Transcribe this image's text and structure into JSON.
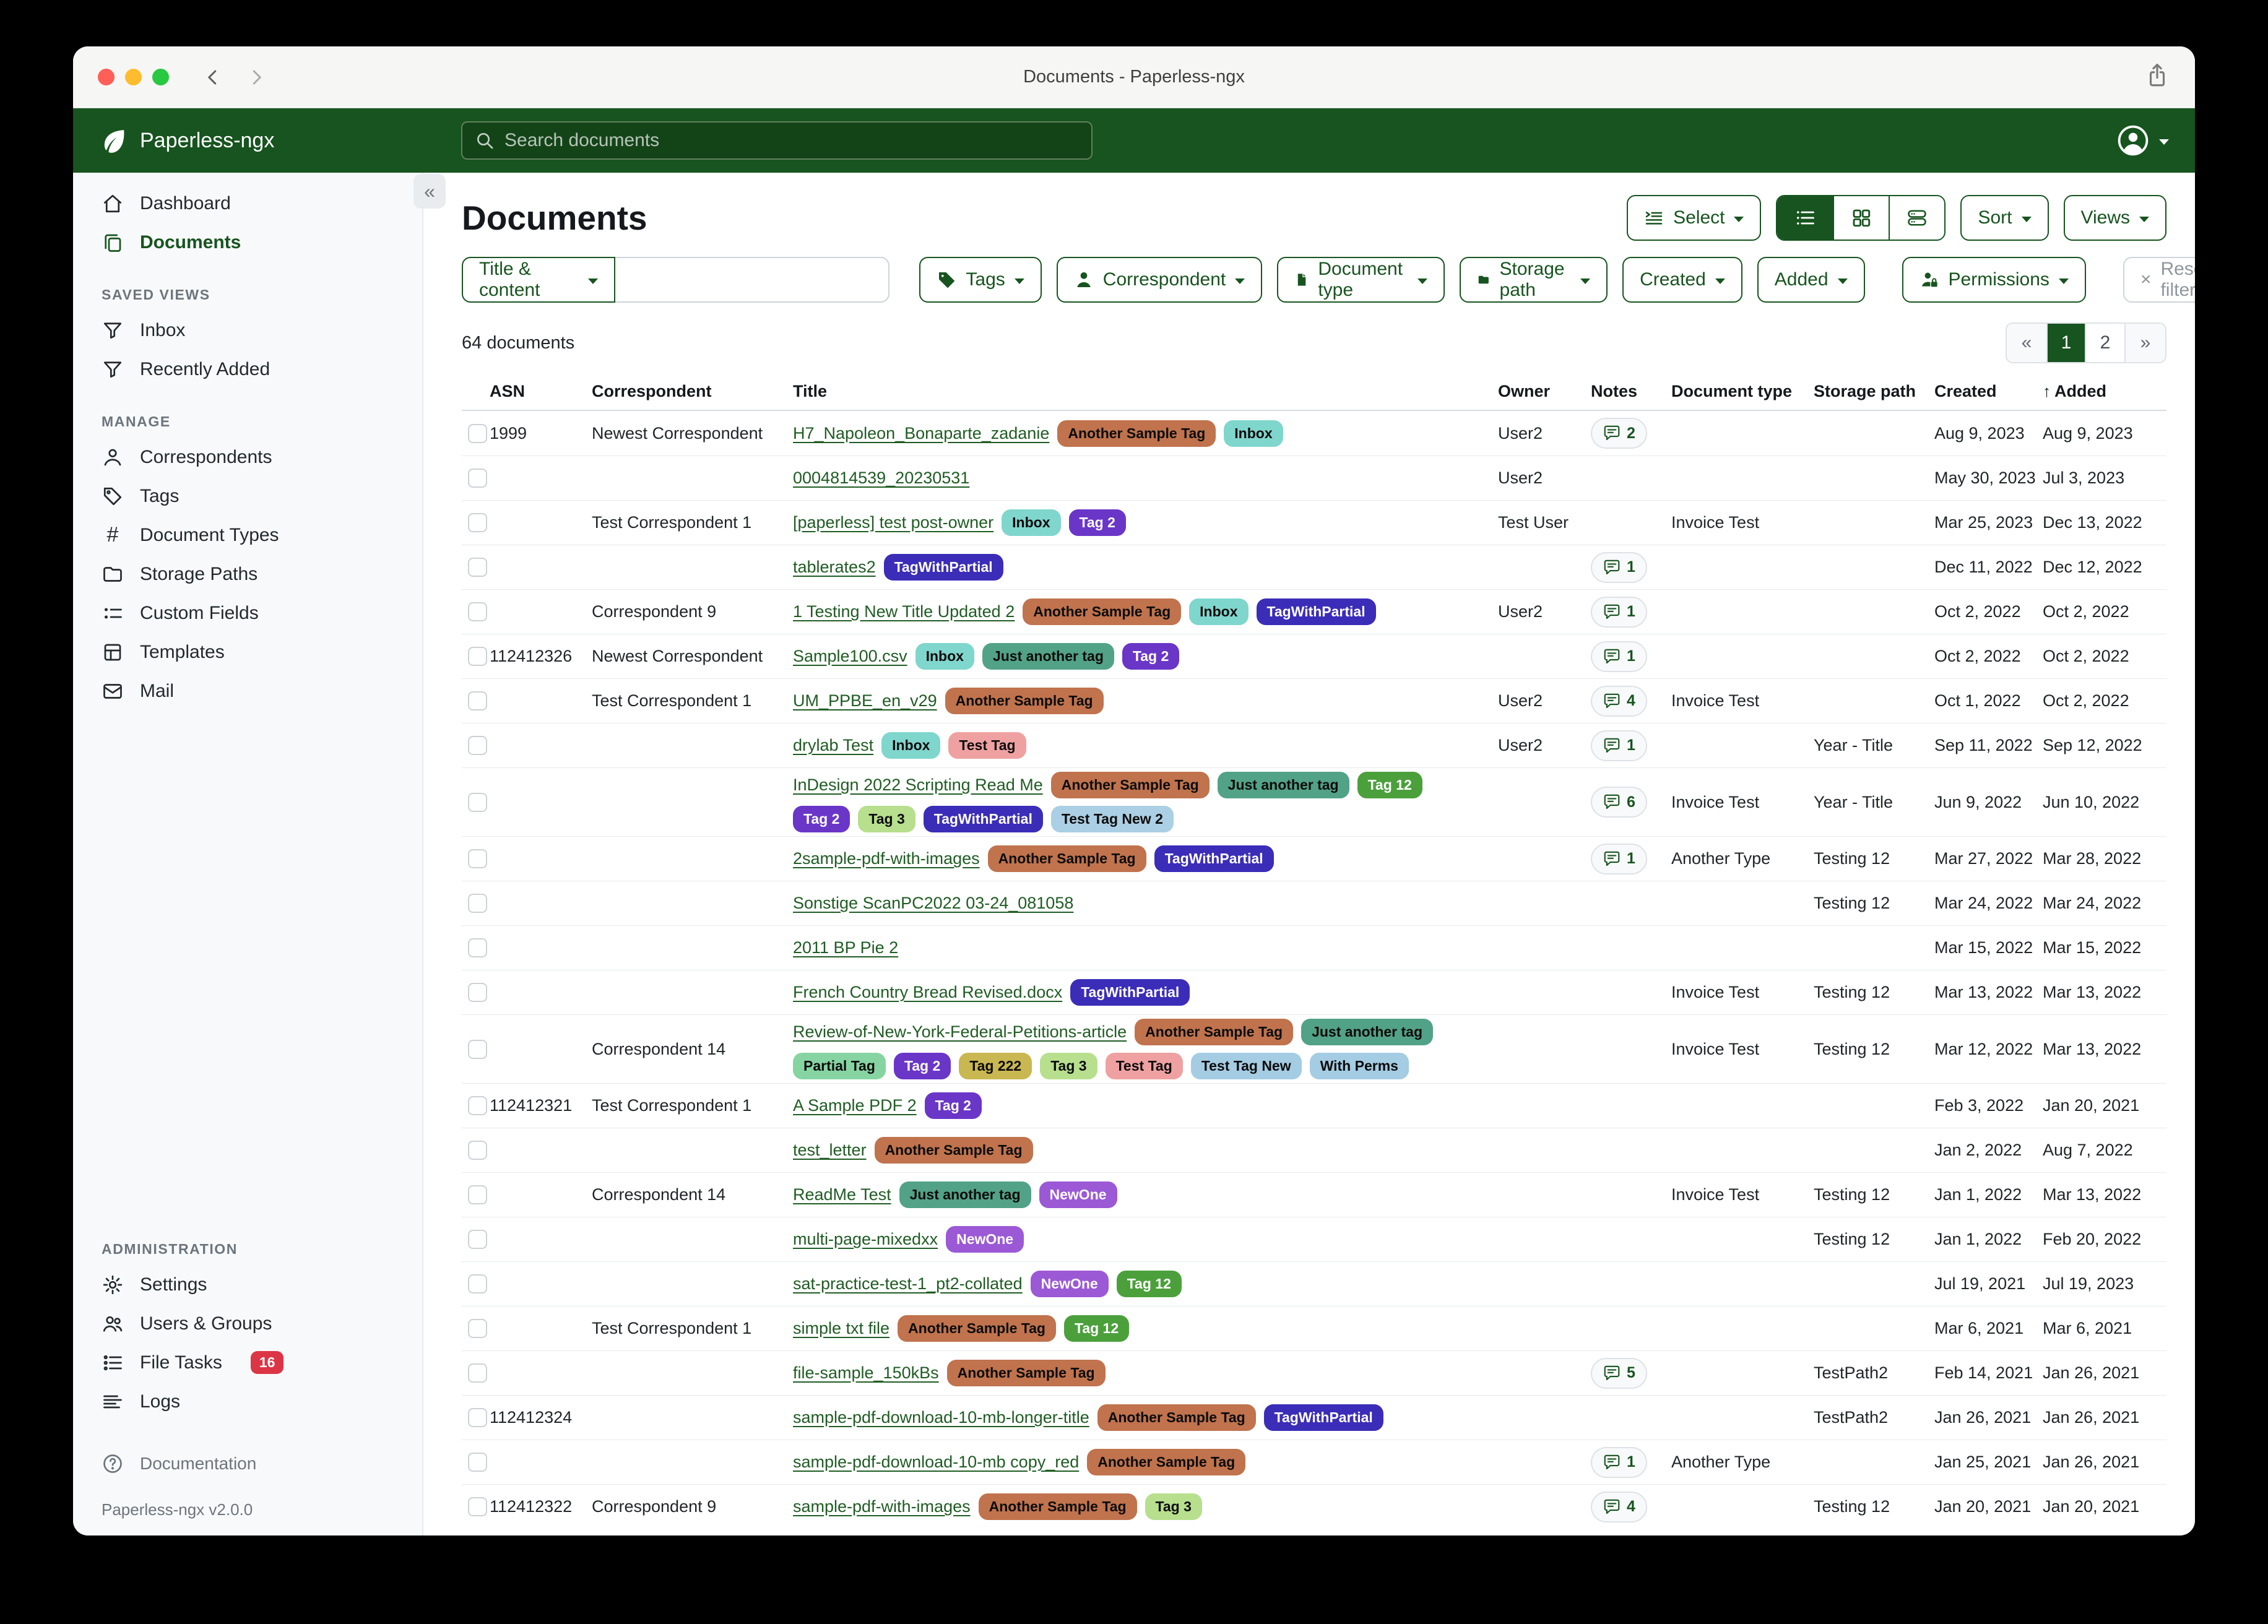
{
  "window": {
    "title": "Documents - Paperless-ngx"
  },
  "navbar": {
    "brand": "Paperless-ngx",
    "search_placeholder": "Search documents"
  },
  "icons": {
    "collapse": "«",
    "hash": "#",
    "sort_asc": "↑",
    "close": "×",
    "prev": "«",
    "next": "»"
  },
  "sidebar": {
    "dashboard": "Dashboard",
    "documents": "Documents",
    "sections": [
      {
        "label": "SAVED VIEWS",
        "items": [
          "Inbox",
          "Recently Added"
        ]
      },
      {
        "label": "MANAGE",
        "items": [
          "Correspondents",
          "Tags",
          "Document Types",
          "Storage Paths",
          "Custom Fields",
          "Templates",
          "Mail"
        ]
      },
      {
        "label": "ADMINISTRATION",
        "items": [
          "Settings",
          "Users & Groups",
          "File Tasks",
          "Logs"
        ]
      }
    ],
    "file_tasks_badge": "16",
    "documentation": "Documentation",
    "version": "Paperless-ngx v2.0.0"
  },
  "page": {
    "title": "Documents",
    "document_count": "64 documents"
  },
  "toolbar": {
    "select": "Select",
    "sort": "Sort",
    "views": "Views"
  },
  "filters": {
    "title_content": "Title & content",
    "tags": "Tags",
    "correspondent": "Correspondent",
    "document_type": "Document type",
    "storage_path": "Storage path",
    "created": "Created",
    "added": "Added",
    "permissions": "Permissions",
    "reset": "Reset filters",
    "search_value": ""
  },
  "pagination": {
    "pages": [
      "1",
      "2"
    ],
    "active": "1"
  },
  "tag_styles": {
    "Another Sample Tag": {
      "bg": "#c0734d",
      "fg": "#0b0b0b"
    },
    "Inbox": {
      "bg": "#7fd6cd",
      "fg": "#0b0b0b"
    },
    "Tag 2": {
      "bg": "#6a36c8",
      "fg": "#ffffff"
    },
    "TagWithPartial": {
      "bg": "#3b2db8",
      "fg": "#ffffff"
    },
    "Just another tag": {
      "bg": "#52a287",
      "fg": "#0b0b0b"
    },
    "Tag 12": {
      "bg": "#4ba03b",
      "fg": "#ffffff"
    },
    "Tag 3": {
      "bg": "#b7df8d",
      "fg": "#0b0b0b"
    },
    "Test Tag New 2": {
      "bg": "#abcfe4",
      "fg": "#0b0b0b"
    },
    "Test Tag": {
      "bg": "#efa1a1",
      "fg": "#0b0b0b"
    },
    "Partial Tag": {
      "bg": "#86d4a2",
      "fg": "#0b0b0b"
    },
    "Tag 222": {
      "bg": "#c9b751",
      "fg": "#0b0b0b"
    },
    "Test Tag New": {
      "bg": "#a4cce3",
      "fg": "#0b0b0b"
    },
    "With Perms": {
      "bg": "#a4cce3",
      "fg": "#0b0b0b"
    },
    "NewOne": {
      "bg": "#9b59d6",
      "fg": "#ffffff"
    }
  },
  "table": {
    "headers": [
      "ASN",
      "Correspondent",
      "Title",
      "Owner",
      "Notes",
      "Document type",
      "Storage path",
      "Created",
      "Added"
    ],
    "rows": [
      {
        "asn": "1999",
        "correspondent": "Newest Correspondent",
        "title": "H7_Napoleon_Bonaparte_zadanie",
        "tags": [
          "Another Sample Tag",
          "Inbox"
        ],
        "owner": "User2",
        "notes": 2,
        "doctype": "",
        "storage": "",
        "created": "Aug 9, 2023",
        "added": "Aug 9, 2023"
      },
      {
        "asn": "",
        "correspondent": "",
        "title": "0004814539_20230531",
        "tags": [],
        "owner": "User2",
        "notes": 0,
        "doctype": "",
        "storage": "",
        "created": "May 30, 2023",
        "added": "Jul 3, 2023"
      },
      {
        "asn": "",
        "correspondent": "Test Correspondent 1",
        "title": "[paperless] test post-owner",
        "tags": [
          "Inbox",
          "Tag 2"
        ],
        "owner": "Test User",
        "notes": 0,
        "doctype": "Invoice Test",
        "storage": "",
        "created": "Mar 25, 2023",
        "added": "Dec 13, 2022"
      },
      {
        "asn": "",
        "correspondent": "",
        "title": "tablerates2",
        "tags": [
          "TagWithPartial"
        ],
        "owner": "",
        "notes": 1,
        "doctype": "",
        "storage": "",
        "created": "Dec 11, 2022",
        "added": "Dec 12, 2022"
      },
      {
        "asn": "",
        "correspondent": "Correspondent 9",
        "title": "1 Testing New Title Updated 2",
        "tags": [
          "Another Sample Tag",
          "Inbox",
          "TagWithPartial"
        ],
        "owner": "User2",
        "notes": 1,
        "doctype": "",
        "storage": "",
        "created": "Oct 2, 2022",
        "added": "Oct 2, 2022"
      },
      {
        "asn": "112412326",
        "correspondent": "Newest Correspondent",
        "title": "Sample100.csv",
        "tags": [
          "Inbox",
          "Just another tag",
          "Tag 2"
        ],
        "owner": "",
        "notes": 1,
        "doctype": "",
        "storage": "",
        "created": "Oct 2, 2022",
        "added": "Oct 2, 2022"
      },
      {
        "asn": "",
        "correspondent": "Test Correspondent 1",
        "title": "UM_PPBE_en_v29",
        "tags": [
          "Another Sample Tag"
        ],
        "owner": "User2",
        "notes": 4,
        "doctype": "Invoice Test",
        "storage": "",
        "created": "Oct 1, 2022",
        "added": "Oct 2, 2022"
      },
      {
        "asn": "",
        "correspondent": "",
        "title": "drylab Test",
        "tags": [
          "Inbox",
          "Test Tag"
        ],
        "owner": "User2",
        "notes": 1,
        "doctype": "",
        "storage": "Year - Title",
        "created": "Sep 11, 2022",
        "added": "Sep 12, 2022"
      },
      {
        "asn": "",
        "correspondent": "",
        "title": "InDesign 2022 Scripting Read Me",
        "tags": [
          "Another Sample Tag",
          "Just another tag",
          "Tag 12",
          "Tag 2",
          "Tag 3",
          "TagWithPartial",
          "Test Tag New 2"
        ],
        "owner": "",
        "notes": 6,
        "doctype": "Invoice Test",
        "storage": "Year - Title",
        "created": "Jun 9, 2022",
        "added": "Jun 10, 2022"
      },
      {
        "asn": "",
        "correspondent": "",
        "title": "2sample-pdf-with-images",
        "tags": [
          "Another Sample Tag",
          "TagWithPartial"
        ],
        "owner": "",
        "notes": 1,
        "doctype": "Another Type",
        "storage": "Testing 12",
        "created": "Mar 27, 2022",
        "added": "Mar 28, 2022"
      },
      {
        "asn": "",
        "correspondent": "",
        "title": "Sonstige ScanPC2022 03-24_081058",
        "tags": [],
        "owner": "",
        "notes": 0,
        "doctype": "",
        "storage": "Testing 12",
        "created": "Mar 24, 2022",
        "added": "Mar 24, 2022"
      },
      {
        "asn": "",
        "correspondent": "",
        "title": "2011 BP Pie 2",
        "tags": [],
        "owner": "",
        "notes": 0,
        "doctype": "",
        "storage": "",
        "created": "Mar 15, 2022",
        "added": "Mar 15, 2022"
      },
      {
        "asn": "",
        "correspondent": "",
        "title": "French Country Bread Revised.docx",
        "tags": [
          "TagWithPartial"
        ],
        "owner": "",
        "notes": 0,
        "doctype": "Invoice Test",
        "storage": "Testing 12",
        "created": "Mar 13, 2022",
        "added": "Mar 13, 2022"
      },
      {
        "asn": "",
        "correspondent": "Correspondent 14",
        "title": "Review-of-New-York-Federal-Petitions-article",
        "tags": [
          "Another Sample Tag",
          "Just another tag",
          "Partial Tag",
          "Tag 2",
          "Tag 222",
          "Tag 3",
          "Test Tag",
          "Test Tag New",
          "With Perms"
        ],
        "owner": "",
        "notes": 0,
        "doctype": "Invoice Test",
        "storage": "Testing 12",
        "created": "Mar 12, 2022",
        "added": "Mar 13, 2022"
      },
      {
        "asn": "112412321",
        "correspondent": "Test Correspondent 1",
        "title": "A Sample PDF 2",
        "tags": [
          "Tag 2"
        ],
        "owner": "",
        "notes": 0,
        "doctype": "",
        "storage": "",
        "created": "Feb 3, 2022",
        "added": "Jan 20, 2021"
      },
      {
        "asn": "",
        "correspondent": "",
        "title": "test_letter",
        "tags": [
          "Another Sample Tag"
        ],
        "owner": "",
        "notes": 0,
        "doctype": "",
        "storage": "",
        "created": "Jan 2, 2022",
        "added": "Aug 7, 2022"
      },
      {
        "asn": "",
        "correspondent": "Correspondent 14",
        "title": "ReadMe Test",
        "tags": [
          "Just another tag",
          "NewOne"
        ],
        "owner": "",
        "notes": 0,
        "doctype": "Invoice Test",
        "storage": "Testing 12",
        "created": "Jan 1, 2022",
        "added": "Mar 13, 2022"
      },
      {
        "asn": "",
        "correspondent": "",
        "title": "multi-page-mixedxx",
        "tags": [
          "NewOne"
        ],
        "owner": "",
        "notes": 0,
        "doctype": "",
        "storage": "Testing 12",
        "created": "Jan 1, 2022",
        "added": "Feb 20, 2022"
      },
      {
        "asn": "",
        "correspondent": "",
        "title": "sat-practice-test-1_pt2-collated",
        "tags": [
          "NewOne",
          "Tag 12"
        ],
        "owner": "",
        "notes": 0,
        "doctype": "",
        "storage": "",
        "created": "Jul 19, 2021",
        "added": "Jul 19, 2023"
      },
      {
        "asn": "",
        "correspondent": "Test Correspondent 1",
        "title": "simple txt file",
        "tags": [
          "Another Sample Tag",
          "Tag 12"
        ],
        "owner": "",
        "notes": 0,
        "doctype": "",
        "storage": "",
        "created": "Mar 6, 2021",
        "added": "Mar 6, 2021"
      },
      {
        "asn": "",
        "correspondent": "",
        "title": "file-sample_150kBs",
        "tags": [
          "Another Sample Tag"
        ],
        "owner": "",
        "notes": 5,
        "doctype": "",
        "storage": "TestPath2",
        "created": "Feb 14, 2021",
        "added": "Jan 26, 2021"
      },
      {
        "asn": "112412324",
        "correspondent": "",
        "title": "sample-pdf-download-10-mb-longer-title",
        "tags": [
          "Another Sample Tag",
          "TagWithPartial"
        ],
        "owner": "",
        "notes": 0,
        "doctype": "",
        "storage": "TestPath2",
        "created": "Jan 26, 2021",
        "added": "Jan 26, 2021"
      },
      {
        "asn": "",
        "correspondent": "",
        "title": "sample-pdf-download-10-mb copy_red",
        "tags": [
          "Another Sample Tag"
        ],
        "owner": "",
        "notes": 1,
        "doctype": "Another Type",
        "storage": "",
        "created": "Jan 25, 2021",
        "added": "Jan 26, 2021"
      },
      {
        "asn": "112412322",
        "correspondent": "Correspondent 9",
        "title": "sample-pdf-with-images",
        "tags": [
          "Another Sample Tag",
          "Tag 3"
        ],
        "owner": "",
        "notes": 4,
        "doctype": "",
        "storage": "Testing 12",
        "created": "Jan 20, 2021",
        "added": "Jan 20, 2021"
      }
    ]
  }
}
